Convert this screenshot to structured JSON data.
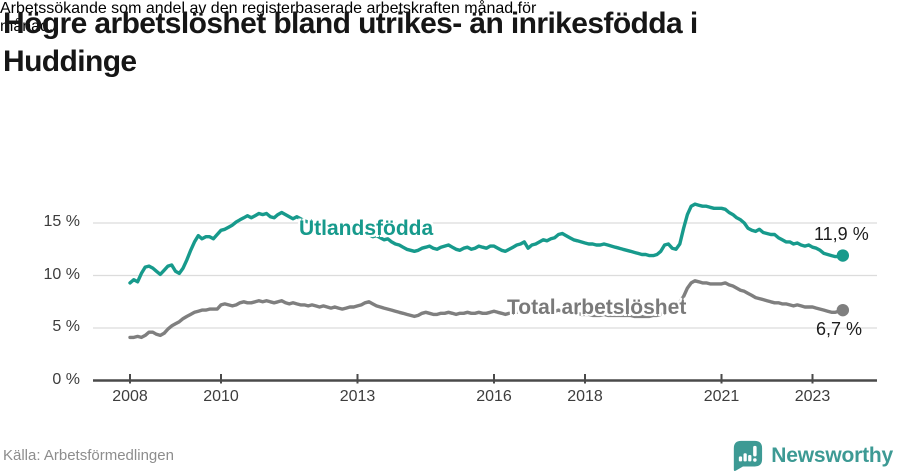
{
  "header": {
    "title_lines": [
      "Högre arbetslöshet bland utrikes- än inrikesfödda i",
      "Huddinge"
    ],
    "subtitle_lines": [
      "Arbetssökande som andel av den registerbaserade arbetskraften månad för",
      "månad."
    ]
  },
  "chart_data": {
    "type": "line",
    "title": "Högre arbetslöshet bland utrikes- än inrikesfödda i Huddinge",
    "subtitle": "Arbetssökande som andel av den registerbaserade arbetskraften månad för månad.",
    "x_start_year": 2008,
    "x_step_months": 1,
    "x_end": "2023-09",
    "ylim": [
      0,
      17
    ],
    "grid": "horizontal",
    "legend_position": "inline-labels",
    "y_axis": {
      "ticks": [
        {
          "label": "15 %",
          "value": 15
        },
        {
          "label": "10 %",
          "value": 10
        },
        {
          "label": "5 %",
          "value": 5
        },
        {
          "label": "0 %",
          "value": 0
        }
      ]
    },
    "x_axis": {
      "ticks": [
        {
          "label": "2008",
          "value": 2008
        },
        {
          "label": "2010",
          "value": 2010
        },
        {
          "label": "2013",
          "value": 2013
        },
        {
          "label": "2016",
          "value": 2016
        },
        {
          "label": "2018",
          "value": 2018
        },
        {
          "label": "2021",
          "value": 2021
        },
        {
          "label": "2023",
          "value": 2023
        }
      ]
    },
    "series": [
      {
        "name": "Utlandsfödda",
        "color": "#179a8c",
        "end_label": "11,9 %",
        "values": [
          9.3,
          9.6,
          9.4,
          10.2,
          10.8,
          10.9,
          10.7,
          10.4,
          10.1,
          10.5,
          10.9,
          11.0,
          10.4,
          10.2,
          10.7,
          11.5,
          12.4,
          13.2,
          13.8,
          13.5,
          13.7,
          13.7,
          13.5,
          13.9,
          14.3,
          14.4,
          14.6,
          14.8,
          15.1,
          15.3,
          15.5,
          15.7,
          15.5,
          15.7,
          15.9,
          15.8,
          15.9,
          15.6,
          15.5,
          15.8,
          16.0,
          15.8,
          15.6,
          15.4,
          15.6,
          15.4,
          15.2,
          15.1,
          15.2,
          15.0,
          14.9,
          15.0,
          14.8,
          14.6,
          14.8,
          14.6,
          14.4,
          14.5,
          14.3,
          14.4,
          14.2,
          14.0,
          14.1,
          13.9,
          13.7,
          13.8,
          13.6,
          13.4,
          13.5,
          13.2,
          13.0,
          12.9,
          12.7,
          12.5,
          12.4,
          12.3,
          12.4,
          12.6,
          12.7,
          12.8,
          12.6,
          12.5,
          12.7,
          12.8,
          12.9,
          12.7,
          12.5,
          12.4,
          12.6,
          12.7,
          12.5,
          12.6,
          12.8,
          12.7,
          12.6,
          12.8,
          12.8,
          12.6,
          12.4,
          12.3,
          12.5,
          12.7,
          12.9,
          13.0,
          13.2,
          12.6,
          12.9,
          13.0,
          13.2,
          13.4,
          13.3,
          13.5,
          13.6,
          13.9,
          14.0,
          13.8,
          13.6,
          13.4,
          13.3,
          13.2,
          13.1,
          13.0,
          13.0,
          12.9,
          12.9,
          13.0,
          12.9,
          12.8,
          12.7,
          12.6,
          12.5,
          12.4,
          12.3,
          12.2,
          12.1,
          12.0,
          12.0,
          11.9,
          11.9,
          12.0,
          12.3,
          12.9,
          13.0,
          12.6,
          12.5,
          13.0,
          14.5,
          15.8,
          16.6,
          16.8,
          16.7,
          16.6,
          16.6,
          16.5,
          16.4,
          16.4,
          16.4,
          16.3,
          16.0,
          15.8,
          15.5,
          15.3,
          15.0,
          14.5,
          14.3,
          14.2,
          14.4,
          14.1,
          14.0,
          13.9,
          13.9,
          13.6,
          13.4,
          13.2,
          13.2,
          13.0,
          13.1,
          12.9,
          12.8,
          12.9,
          12.7,
          12.6,
          12.4,
          12.1,
          12.0,
          11.9,
          11.8,
          11.8,
          11.9
        ]
      },
      {
        "name": "Total arbetslöshet",
        "color": "#7f7f7f",
        "end_label": "6,7 %",
        "values": [
          4.1,
          4.1,
          4.2,
          4.1,
          4.3,
          4.6,
          4.6,
          4.4,
          4.3,
          4.5,
          4.9,
          5.2,
          5.4,
          5.6,
          5.9,
          6.1,
          6.3,
          6.5,
          6.6,
          6.7,
          6.7,
          6.8,
          6.8,
          6.8,
          7.2,
          7.3,
          7.2,
          7.1,
          7.2,
          7.4,
          7.5,
          7.4,
          7.4,
          7.5,
          7.6,
          7.5,
          7.6,
          7.5,
          7.4,
          7.5,
          7.6,
          7.4,
          7.3,
          7.4,
          7.3,
          7.2,
          7.2,
          7.1,
          7.2,
          7.1,
          7.0,
          7.1,
          7.0,
          6.9,
          7.0,
          6.9,
          6.8,
          6.9,
          7.0,
          7.0,
          7.1,
          7.2,
          7.4,
          7.5,
          7.3,
          7.1,
          7.0,
          6.9,
          6.8,
          6.7,
          6.6,
          6.5,
          6.4,
          6.3,
          6.2,
          6.1,
          6.2,
          6.4,
          6.5,
          6.4,
          6.3,
          6.3,
          6.4,
          6.4,
          6.5,
          6.4,
          6.3,
          6.4,
          6.4,
          6.5,
          6.4,
          6.4,
          6.5,
          6.4,
          6.4,
          6.5,
          6.6,
          6.5,
          6.4,
          6.3,
          6.4,
          6.4,
          6.5,
          6.6,
          6.5,
          6.4,
          6.5,
          6.5,
          6.5,
          6.6,
          6.6,
          6.5,
          6.6,
          6.7,
          6.6,
          6.5,
          6.5,
          6.4,
          6.4,
          6.3,
          6.3,
          6.3,
          6.2,
          6.2,
          6.2,
          6.3,
          6.2,
          6.2,
          6.2,
          6.2,
          6.2,
          6.2,
          6.2,
          6.1,
          6.1,
          6.1,
          6.1,
          6.1,
          6.2,
          6.2,
          6.3,
          6.4,
          6.6,
          6.9,
          7.2,
          7.5,
          8.0,
          8.8,
          9.3,
          9.5,
          9.4,
          9.3,
          9.3,
          9.2,
          9.2,
          9.2,
          9.2,
          9.3,
          9.1,
          9.0,
          8.8,
          8.6,
          8.5,
          8.3,
          8.1,
          7.9,
          7.8,
          7.7,
          7.6,
          7.5,
          7.4,
          7.4,
          7.3,
          7.3,
          7.2,
          7.1,
          7.2,
          7.1,
          7.0,
          7.0,
          7.0,
          6.9,
          6.8,
          6.7,
          6.6,
          6.5,
          6.5,
          6.6,
          6.7
        ]
      }
    ]
  },
  "footer": {
    "source": "Källa: Arbetsförmedlingen",
    "brand": "Newsworthy"
  },
  "colors": {
    "series_foreign_born": "#179a8c",
    "series_total": "#7f7f7f",
    "brand_teal": "#3d9a94",
    "gridline": "#dcdcdc",
    "axis": "#4a4a4a"
  }
}
